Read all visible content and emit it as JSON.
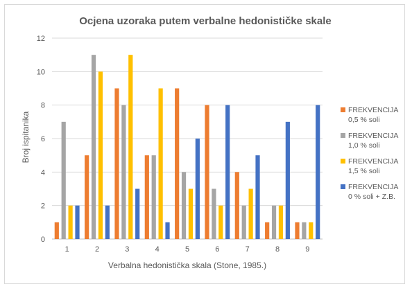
{
  "chart_data": {
    "type": "bar",
    "title": "Ocjena uzoraka putem verbalne hedonističke skale",
    "xlabel": "Verbalna hedonistička skala (Stone, 1985.)",
    "ylabel": "Broj ispitanika",
    "categories": [
      "1",
      "2",
      "3",
      "4",
      "5",
      "6",
      "7",
      "8",
      "9"
    ],
    "ylim": [
      0,
      12
    ],
    "yticks": [
      0,
      2,
      4,
      6,
      8,
      10,
      12
    ],
    "grid": true,
    "legend_position": "right",
    "series": [
      {
        "name": "FREKVENCIJA 0,5 % soli",
        "legend_lines": [
          "FREKVENCIJA",
          "0,5 % soli"
        ],
        "color": "#ED7D31",
        "values": [
          1,
          5,
          9,
          5,
          9,
          8,
          4,
          1,
          1
        ]
      },
      {
        "name": "FREKVENCIJA 1,0 % soli",
        "legend_lines": [
          "FREKVENCIJA",
          "1,0 % soli"
        ],
        "color": "#A5A5A5",
        "values": [
          7,
          11,
          8,
          5,
          4,
          3,
          2,
          2,
          1
        ]
      },
      {
        "name": "FREKVENCIJA 1,5 % soli",
        "legend_lines": [
          "FREKVENCIJA",
          "1,5 % soli"
        ],
        "color": "#FFC000",
        "values": [
          2,
          10,
          11,
          9,
          3,
          2,
          3,
          2,
          1
        ]
      },
      {
        "name": "FREKVENCIJA 0 % soli + Z.B.",
        "legend_lines": [
          "FREKVENCIJA",
          "0 % soli + Z.B."
        ],
        "color": "#4472C4",
        "values": [
          2,
          2,
          3,
          1,
          6,
          8,
          5,
          7,
          8
        ]
      }
    ]
  }
}
